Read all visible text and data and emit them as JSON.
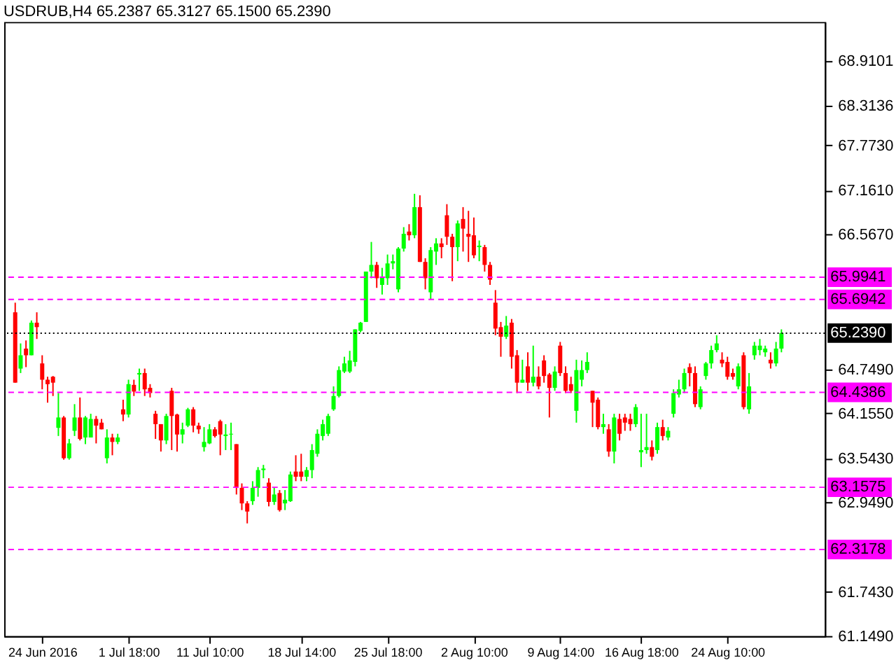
{
  "chart_data": {
    "type": "candlestick",
    "title": "USDRUB,H4  65.2387 65.3127 65.1500 65.2390",
    "categories": [
      null,
      null,
      null,
      null,
      null,
      "24 Jun 2016",
      null,
      null,
      null,
      null,
      null,
      null,
      null,
      null,
      null,
      null,
      null,
      null,
      null,
      null,
      null,
      "1 Jul 18:00",
      null,
      null,
      null,
      null,
      null,
      null,
      null,
      null,
      null,
      null,
      null,
      null,
      null,
      null,
      "11 Jul 10:00",
      null,
      null,
      null,
      null,
      null,
      null,
      null,
      null,
      null,
      null,
      null,
      null,
      null,
      null,
      null,
      null,
      "18 Jul 14:00",
      null,
      null,
      null,
      null,
      null,
      null,
      null,
      null,
      null,
      null,
      null,
      null,
      null,
      null,
      null,
      "25 Jul 18:00",
      null,
      null,
      null,
      null,
      null,
      null,
      null,
      null,
      null,
      null,
      null,
      null,
      null,
      null,
      null,
      "2 Aug 10:00",
      null,
      null,
      null,
      null,
      null,
      null,
      null,
      null,
      null,
      null,
      null,
      null,
      null,
      null,
      null,
      "9 Aug 14:00",
      null,
      null,
      null,
      null,
      null,
      null,
      null,
      null,
      null,
      null,
      null,
      null,
      null,
      null,
      "16 Aug 18:00",
      null,
      null,
      null,
      null,
      null,
      null,
      null,
      null,
      null,
      null,
      null,
      null,
      null,
      null,
      null,
      "24 Aug 10:00",
      null,
      null,
      null,
      null,
      null,
      null,
      null,
      null,
      null,
      null
    ],
    "ohlc": [
      [
        65.52,
        65.65,
        64.57,
        64.57
      ],
      [
        64.76,
        65.1,
        64.7,
        64.94
      ],
      [
        65.03,
        65.14,
        64.78,
        64.94
      ],
      [
        64.94,
        65.41,
        64.94,
        65.38
      ],
      [
        65.38,
        65.52,
        65.16,
        65.32
      ],
      [
        64.83,
        64.94,
        64.48,
        64.61
      ],
      [
        64.61,
        64.65,
        64.3,
        64.55
      ],
      [
        64.65,
        64.66,
        64.39,
        64.57
      ],
      [
        63.96,
        64.43,
        63.85,
        64.1
      ],
      [
        64.1,
        64.12,
        63.53,
        63.55
      ],
      [
        63.55,
        63.81,
        63.53,
        63.75
      ],
      [
        63.92,
        64.28,
        63.85,
        64.1
      ],
      [
        64.1,
        64.37,
        63.79,
        63.81
      ],
      [
        63.83,
        64.12,
        63.74,
        64.1
      ],
      [
        63.83,
        64.15,
        63.83,
        64.08
      ],
      [
        64.08,
        64.12,
        63.75,
        63.99
      ],
      [
        64.03,
        64.08,
        63.94,
        63.94
      ],
      [
        63.55,
        63.94,
        63.48,
        63.83
      ],
      [
        63.83,
        63.88,
        63.59,
        63.77
      ],
      [
        63.77,
        63.88,
        63.74,
        63.83
      ],
      [
        64.21,
        64.34,
        64.05,
        64.14
      ],
      [
        64.14,
        64.61,
        64.1,
        64.55
      ],
      [
        64.54,
        64.61,
        64.39,
        64.45
      ],
      [
        64.68,
        64.76,
        64.46,
        64.7
      ],
      [
        64.7,
        64.76,
        64.39,
        64.48
      ],
      [
        64.5,
        64.55,
        64.37,
        64.43
      ],
      [
        64.15,
        64.19,
        63.81,
        64.01
      ],
      [
        64.01,
        64.01,
        63.64,
        63.79
      ],
      [
        63.79,
        64.15,
        63.74,
        64.12
      ],
      [
        64.46,
        64.5,
        63.66,
        64.12
      ],
      [
        64.14,
        64.15,
        63.64,
        63.87
      ],
      [
        63.87,
        64.03,
        63.75,
        63.94
      ],
      [
        63.99,
        64.23,
        63.97,
        64.21
      ],
      [
        64.21,
        64.24,
        63.9,
        63.99
      ],
      [
        63.99,
        64.03,
        63.88,
        63.94
      ],
      [
        63.7,
        63.97,
        63.64,
        63.77
      ],
      [
        63.75,
        64.01,
        63.74,
        63.94
      ],
      [
        63.94,
        63.97,
        63.83,
        63.85
      ],
      [
        64.05,
        64.07,
        63.59,
        63.87
      ],
      [
        63.85,
        64.01,
        63.66,
        63.87
      ],
      [
        63.87,
        64.03,
        63.66,
        63.88
      ],
      [
        63.74,
        63.74,
        63.06,
        63.15
      ],
      [
        63.15,
        63.21,
        62.85,
        62.94
      ],
      [
        62.94,
        62.97,
        62.67,
        62.83
      ],
      [
        62.97,
        63.24,
        62.92,
        63.15
      ],
      [
        63.15,
        63.43,
        63.03,
        63.39
      ],
      [
        63.39,
        63.46,
        63.28,
        63.41
      ],
      [
        63.22,
        63.28,
        62.9,
        62.96
      ],
      [
        62.96,
        63.15,
        62.92,
        63.06
      ],
      [
        63.08,
        63.12,
        62.83,
        62.85
      ],
      [
        62.94,
        63.12,
        62.85,
        62.99
      ],
      [
        62.97,
        63.37,
        62.96,
        63.33
      ],
      [
        63.37,
        63.59,
        63.24,
        63.3
      ],
      [
        63.37,
        63.61,
        63.24,
        63.3
      ],
      [
        63.3,
        63.43,
        63.24,
        63.39
      ],
      [
        63.39,
        63.74,
        63.28,
        63.66
      ],
      [
        63.61,
        63.94,
        63.57,
        63.88
      ],
      [
        63.85,
        64.07,
        63.79,
        64.01
      ],
      [
        63.88,
        64.15,
        63.85,
        64.12
      ],
      [
        64.21,
        64.52,
        64.19,
        64.39
      ],
      [
        64.39,
        64.79,
        64.37,
        64.74
      ],
      [
        64.72,
        64.92,
        64.7,
        64.83
      ],
      [
        64.72,
        65.0,
        64.7,
        64.87
      ],
      [
        64.85,
        65.29,
        64.79,
        65.29
      ],
      [
        65.27,
        65.39,
        65.25,
        65.38
      ],
      [
        65.39,
        66.07,
        65.39,
        66.07
      ],
      [
        66.07,
        66.47,
        65.98,
        66.16
      ],
      [
        66.16,
        66.2,
        65.85,
        65.98
      ],
      [
        65.89,
        66.12,
        65.76,
        66.0
      ],
      [
        65.98,
        66.3,
        65.89,
        66.18
      ],
      [
        66.18,
        66.3,
        66.1,
        66.21
      ],
      [
        65.83,
        66.4,
        65.79,
        66.38
      ],
      [
        66.38,
        66.67,
        66.34,
        66.58
      ],
      [
        66.61,
        66.71,
        66.49,
        66.56
      ],
      [
        66.56,
        67.12,
        66.52,
        66.94
      ],
      [
        66.94,
        67.1,
        66.2,
        66.2
      ],
      [
        66.2,
        66.25,
        65.83,
        65.98
      ],
      [
        65.79,
        66.4,
        65.7,
        66.36
      ],
      [
        66.34,
        66.52,
        66.16,
        66.45
      ],
      [
        66.45,
        66.52,
        66.25,
        66.4
      ],
      [
        66.83,
        66.98,
        66.43,
        66.54
      ],
      [
        66.54,
        66.58,
        65.94,
        66.4
      ],
      [
        66.4,
        66.76,
        66.21,
        66.72
      ],
      [
        66.78,
        66.94,
        66.34,
        66.65
      ],
      [
        66.58,
        66.89,
        66.2,
        66.54
      ],
      [
        66.56,
        66.8,
        66.25,
        66.29
      ],
      [
        66.4,
        66.49,
        66.21,
        66.42
      ],
      [
        66.4,
        66.43,
        66.07,
        66.16
      ],
      [
        66.16,
        66.2,
        65.89,
        65.96
      ],
      [
        65.65,
        65.82,
        65.21,
        65.3
      ],
      [
        65.32,
        65.39,
        64.92,
        65.19
      ],
      [
        65.19,
        65.47,
        65.16,
        65.34
      ],
      [
        65.38,
        65.43,
        64.76,
        64.92
      ],
      [
        64.94,
        65.01,
        64.43,
        64.57
      ],
      [
        64.57,
        64.88,
        64.57,
        64.61
      ],
      [
        64.79,
        64.98,
        64.46,
        64.57
      ],
      [
        64.57,
        65.07,
        64.52,
        64.65
      ],
      [
        64.65,
        64.79,
        64.48,
        64.52
      ],
      [
        64.87,
        64.94,
        64.57,
        64.66
      ],
      [
        64.68,
        64.7,
        64.1,
        64.5
      ],
      [
        64.5,
        64.79,
        64.46,
        64.72
      ],
      [
        65.07,
        65.12,
        64.66,
        64.7
      ],
      [
        64.7,
        64.79,
        64.43,
        64.46
      ],
      [
        64.55,
        64.65,
        64.43,
        64.46
      ],
      [
        64.19,
        64.88,
        64.03,
        64.74
      ],
      [
        64.61,
        64.87,
        64.52,
        64.74
      ],
      [
        64.74,
        64.98,
        64.7,
        64.85
      ],
      [
        64.46,
        64.46,
        63.97,
        64.3
      ],
      [
        64.34,
        64.37,
        63.94,
        63.97
      ],
      [
        63.97,
        64.15,
        63.88,
        64.01
      ],
      [
        63.94,
        64.01,
        63.57,
        63.64
      ],
      [
        63.64,
        64.15,
        63.48,
        64.1
      ],
      [
        64.08,
        64.15,
        63.79,
        63.88
      ],
      [
        64.1,
        64.15,
        63.92,
        64.03
      ],
      [
        64.08,
        64.15,
        63.92,
        64.01
      ],
      [
        64.01,
        64.28,
        63.97,
        64.24
      ],
      [
        63.63,
        64.15,
        63.43,
        63.66
      ],
      [
        63.66,
        64.15,
        63.61,
        63.7
      ],
      [
        63.7,
        63.79,
        63.52,
        63.57
      ],
      [
        63.66,
        64.03,
        63.61,
        63.97
      ],
      [
        63.97,
        64.07,
        63.79,
        63.85
      ],
      [
        63.83,
        63.97,
        63.79,
        63.92
      ],
      [
        64.15,
        64.48,
        64.1,
        64.43
      ],
      [
        64.41,
        64.61,
        64.37,
        64.48
      ],
      [
        64.48,
        64.76,
        64.43,
        64.7
      ],
      [
        64.78,
        64.83,
        64.52,
        64.7
      ],
      [
        64.7,
        64.79,
        64.24,
        64.28
      ],
      [
        64.24,
        64.52,
        64.21,
        64.48
      ],
      [
        64.66,
        64.85,
        64.61,
        64.83
      ],
      [
        64.83,
        65.07,
        64.76,
        65.01
      ],
      [
        65.01,
        65.21,
        64.98,
        65.1
      ],
      [
        64.88,
        64.98,
        64.78,
        64.83
      ],
      [
        64.85,
        64.92,
        64.61,
        64.65
      ],
      [
        64.7,
        64.76,
        64.61,
        64.65
      ],
      [
        64.52,
        64.83,
        64.48,
        64.79
      ],
      [
        64.94,
        64.98,
        64.21,
        64.24
      ],
      [
        64.21,
        64.7,
        64.15,
        64.52
      ],
      [
        64.94,
        65.12,
        64.88,
        65.07
      ],
      [
        65.01,
        65.16,
        64.94,
        65.07
      ],
      [
        64.98,
        65.07,
        64.92,
        65.03
      ],
      [
        64.88,
        64.98,
        64.76,
        64.83
      ],
      [
        64.83,
        65.12,
        64.79,
        65.03
      ],
      [
        65.03,
        65.29,
        64.98,
        65.24
      ]
    ],
    "colors": [
      "#ff0000",
      "#00ff00",
      "#ff0000",
      "#00ff00",
      "#ff0000",
      "#ff0000",
      "#ff0000",
      "#ff0000",
      "#00ff00",
      "#ff0000",
      "#00ff00",
      "#00ff00",
      "#ff0000",
      "#00ff00",
      "#00ff00",
      "#ff0000",
      "#ff0000",
      "#00ff00",
      "#ff0000",
      "#00ff00",
      "#ff0000",
      "#00ff00",
      "#ff0000",
      "#00ff00",
      "#ff0000",
      "#ff0000",
      "#ff0000",
      "#ff0000",
      "#00ff00",
      "#ff0000",
      "#ff0000",
      "#00ff00",
      "#00ff00",
      "#ff0000",
      "#ff0000",
      "#00ff00",
      "#00ff00",
      "#ff0000",
      "#ff0000",
      "#00ff00",
      "#00ff00",
      "#ff0000",
      "#ff0000",
      "#ff0000",
      "#00ff00",
      "#00ff00",
      "#00ff00",
      "#ff0000",
      "#00ff00",
      "#ff0000",
      "#00ff00",
      "#00ff00",
      "#ff0000",
      "#ff0000",
      "#00ff00",
      "#00ff00",
      "#00ff00",
      "#00ff00",
      "#00ff00",
      "#00ff00",
      "#00ff00",
      "#00ff00",
      "#00ff00",
      "#00ff00",
      "#00ff00",
      "#00ff00",
      "#00ff00",
      "#ff0000",
      "#00ff00",
      "#00ff00",
      "#00ff00",
      "#00ff00",
      "#00ff00",
      "#ff0000",
      "#00ff00",
      "#ff0000",
      "#ff0000",
      "#00ff00",
      "#00ff00",
      "#ff0000",
      "#ff0000",
      "#ff0000",
      "#00ff00",
      "#ff0000",
      "#ff0000",
      "#ff0000",
      "#00ff00",
      "#ff0000",
      "#ff0000",
      "#ff0000",
      "#ff0000",
      "#00ff00",
      "#ff0000",
      "#ff0000",
      "#00ff00",
      "#ff0000",
      "#00ff00",
      "#ff0000",
      "#ff0000",
      "#ff0000",
      "#00ff00",
      "#ff0000",
      "#ff0000",
      "#ff0000",
      "#00ff00",
      "#00ff00",
      "#00ff00",
      "#ff0000",
      "#ff0000",
      "#00ff00",
      "#ff0000",
      "#00ff00",
      "#ff0000",
      "#ff0000",
      "#ff0000",
      "#00ff00",
      "#00ff00",
      "#00ff00",
      "#ff0000",
      "#00ff00",
      "#ff0000",
      "#00ff00",
      "#00ff00",
      "#00ff00",
      "#00ff00",
      "#ff0000",
      "#ff0000",
      "#00ff00",
      "#00ff00",
      "#00ff00",
      "#00ff00",
      "#ff0000",
      "#ff0000",
      "#ff0000",
      "#00ff00",
      "#ff0000",
      "#00ff00",
      "#00ff00",
      "#00ff00",
      "#00ff00",
      "#ff0000",
      "#00ff00",
      "#00ff00"
    ],
    "ylim": [
      61.149,
      69.44
    ],
    "yticks": [
      {
        "value": 61.149,
        "label": "61.1490"
      },
      {
        "value": 61.743,
        "label": "61.7430"
      },
      {
        "value": 62.949,
        "label": "62.9490"
      },
      {
        "value": 63.543,
        "label": "63.5430"
      },
      {
        "value": 64.155,
        "label": "64.1550"
      },
      {
        "value": 64.749,
        "label": "64.7490"
      },
      {
        "value": 66.567,
        "label": "66.5670"
      },
      {
        "value": 67.161,
        "label": "67.1610"
      },
      {
        "value": 67.773,
        "label": "67.7730"
      },
      {
        "value": 68.3136,
        "label": "68.3136"
      },
      {
        "value": 68.9101,
        "label": "68.9101"
      }
    ],
    "ref_lines": [
      {
        "axis": "y",
        "value": 65.9941,
        "label": "65.9941",
        "color": "#ff00ff",
        "line_style": "dashed"
      },
      {
        "axis": "y",
        "value": 65.6942,
        "label": "65.6942",
        "color": "#ff00ff",
        "line_style": "dashed"
      },
      {
        "axis": "y",
        "value": 65.239,
        "label": "65.2390",
        "color": "#000000",
        "line_style": "dotted"
      },
      {
        "axis": "y",
        "value": 64.4386,
        "label": "64.4386",
        "color": "#ff00ff",
        "line_style": "dashed"
      },
      {
        "axis": "y",
        "value": 63.1575,
        "label": "63.1575",
        "color": "#ff00ff",
        "line_style": "dashed"
      },
      {
        "axis": "y",
        "value": 62.3178,
        "label": "62.3178",
        "color": "#ff00ff",
        "line_style": "dashed"
      }
    ]
  }
}
